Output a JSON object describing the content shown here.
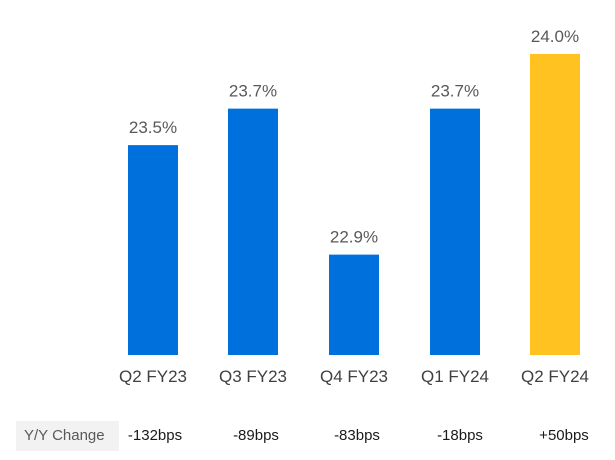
{
  "chart_data": {
    "type": "bar",
    "categories": [
      "Q2 FY23",
      "Q3 FY23",
      "Q4 FY23",
      "Q1 FY24",
      "Q2 FY24"
    ],
    "values": [
      23.5,
      23.7,
      22.9,
      23.7,
      24.0
    ],
    "value_labels": [
      "23.5%",
      "23.7%",
      "22.9%",
      "23.7%",
      "24.0%"
    ],
    "colors": [
      "#0071dc",
      "#0071dc",
      "#0071dc",
      "#0071dc",
      "#ffc220"
    ],
    "title": "",
    "xlabel": "",
    "ylabel": "",
    "grid": false,
    "legend": "none"
  },
  "yoy": {
    "label": "Y/Y Change",
    "values": [
      "-132bps",
      "-89bps",
      "-83bps",
      "-18bps",
      "+50bps"
    ]
  }
}
